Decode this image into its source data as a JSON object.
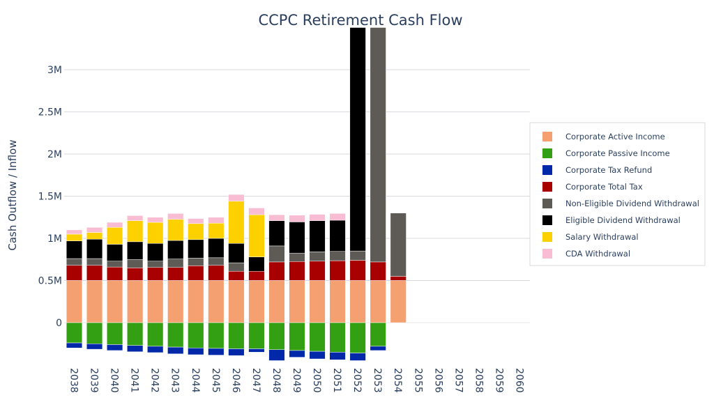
{
  "chart_data": {
    "type": "bar",
    "stacked": true,
    "title": "CCPC Retirement Cash Flow",
    "xlabel": "",
    "ylabel": "Cash Outflow / Inflow",
    "ylim": [
      -450000,
      3500000
    ],
    "yticks": [
      {
        "value": 0,
        "label": "0"
      },
      {
        "value": 500000,
        "label": "0.5M"
      },
      {
        "value": 1000000,
        "label": "1M"
      },
      {
        "value": 1500000,
        "label": "1.5M"
      },
      {
        "value": 2000000,
        "label": "2M"
      },
      {
        "value": 2500000,
        "label": "2.5M"
      },
      {
        "value": 3000000,
        "label": "3M"
      }
    ],
    "grid": true,
    "legend_position": "right",
    "categories": [
      "2038",
      "2039",
      "2040",
      "2041",
      "2042",
      "2043",
      "2044",
      "2045",
      "2046",
      "2047",
      "2048",
      "2049",
      "2050",
      "2051",
      "2052",
      "2053",
      "2054",
      "2055",
      "2056",
      "2057",
      "2058",
      "2059",
      "2060"
    ],
    "series": [
      {
        "name": "Corporate Active Income",
        "color": "#f4a071",
        "values": [
          500000,
          500000,
          500000,
          500000,
          500000,
          500000,
          500000,
          500000,
          500000,
          500000,
          500000,
          500000,
          500000,
          500000,
          500000,
          500000,
          500000,
          0,
          0,
          0,
          0,
          0,
          0
        ]
      },
      {
        "name": "Corporate Passive Income",
        "color": "#33a014",
        "values": [
          -240000,
          -250000,
          -260000,
          -270000,
          -280000,
          -290000,
          -300000,
          -305000,
          -310000,
          -310000,
          -320000,
          -330000,
          -340000,
          -350000,
          -360000,
          -280000,
          0,
          0,
          0,
          0,
          0,
          0,
          0
        ]
      },
      {
        "name": "Corporate Tax Refund",
        "color": "#0028a8",
        "values": [
          -60000,
          -65000,
          -70000,
          -75000,
          -75000,
          -80000,
          -80000,
          -80000,
          -80000,
          -40000,
          -130000,
          -80000,
          -90000,
          -90000,
          -90000,
          -50000,
          0,
          0,
          0,
          0,
          0,
          0,
          0
        ]
      },
      {
        "name": "Corporate Total Tax",
        "color": "#a80000",
        "values": [
          180000,
          180000,
          160000,
          150000,
          155000,
          155000,
          175000,
          180000,
          110000,
          110000,
          220000,
          225000,
          230000,
          235000,
          240000,
          220000,
          50000,
          0,
          0,
          0,
          0,
          0,
          0
        ]
      },
      {
        "name": "Non-Eligible Dividend Withdrawal",
        "color": "#5e5a55",
        "values": [
          80000,
          80000,
          70000,
          100000,
          75000,
          100000,
          90000,
          90000,
          100000,
          0,
          190000,
          100000,
          110000,
          110000,
          110000,
          2800000,
          750000,
          0,
          0,
          0,
          0,
          0,
          0
        ]
      },
      {
        "name": "Eligible Dividend Withdrawal",
        "color": "#000000",
        "values": [
          210000,
          230000,
          200000,
          210000,
          210000,
          220000,
          220000,
          230000,
          230000,
          170000,
          300000,
          370000,
          370000,
          370000,
          2800000,
          0,
          0,
          0,
          0,
          0,
          0,
          0,
          0
        ]
      },
      {
        "name": "Salary Withdrawal",
        "color": "#fdd000",
        "values": [
          80000,
          80000,
          200000,
          250000,
          250000,
          250000,
          190000,
          180000,
          500000,
          500000,
          0,
          0,
          0,
          0,
          0,
          0,
          0,
          0,
          0,
          0,
          0,
          0,
          0
        ]
      },
      {
        "name": "CDA Withdrawal",
        "color": "#f8bdd2",
        "values": [
          50000,
          60000,
          60000,
          60000,
          60000,
          70000,
          60000,
          70000,
          80000,
          80000,
          70000,
          80000,
          75000,
          80000,
          0,
          0,
          0,
          0,
          0,
          0,
          0,
          0,
          0
        ]
      }
    ]
  }
}
